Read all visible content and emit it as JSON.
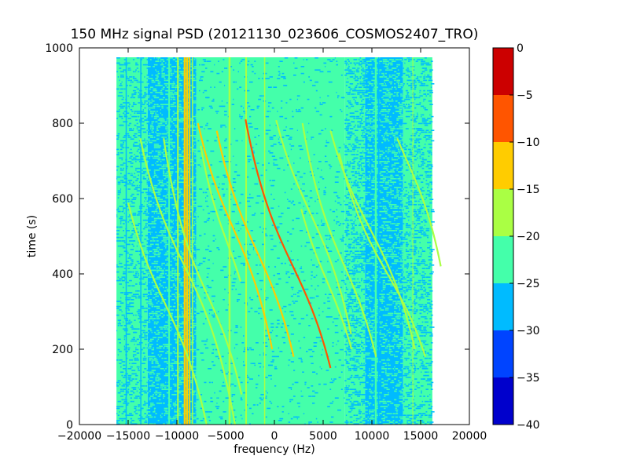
{
  "chart_data": {
    "type": "heatmap",
    "title": "150 MHz signal PSD (20121130_023606_COSMOS2407_TRO)",
    "xlabel": "frequency (Hz)",
    "ylabel": "time (s)",
    "xlim": [
      -20000,
      20000
    ],
    "ylim": [
      0,
      1000
    ],
    "x_ticks": [
      -20000,
      -15000,
      -10000,
      -5000,
      0,
      5000,
      10000,
      15000,
      20000
    ],
    "x_tick_labels": [
      "−20000",
      "−15000",
      "−10000",
      "−5000",
      "0",
      "5000",
      "10000",
      "15000",
      "20000"
    ],
    "y_ticks": [
      0,
      200,
      400,
      600,
      800,
      1000
    ],
    "y_tick_labels": [
      "0",
      "200",
      "400",
      "600",
      "800",
      "1000"
    ],
    "data_extent": {
      "x": [
        -16200,
        16200
      ],
      "y": [
        0,
        975
      ]
    },
    "colorbar": {
      "levels": [
        -40,
        -35,
        -30,
        -25,
        -20,
        -15,
        -10,
        -5,
        0
      ],
      "tick_labels": [
        "−40",
        "−35",
        "−30",
        "−25",
        "−20",
        "−15",
        "−10",
        "−5",
        "0"
      ],
      "colors": [
        "#0000cc",
        "#0044ff",
        "#00bbff",
        "#44ffaa",
        "#aaff44",
        "#ffcc00",
        "#ff5500",
        "#cc0000"
      ]
    },
    "background_level_color": "#44ffaa",
    "noise_bands": [
      {
        "x": [
          -16200,
          -13000
        ],
        "color": "#44ffaa",
        "density": 0.18,
        "speck_color": "#00bbff"
      },
      {
        "x": [
          -13000,
          -8000
        ],
        "color": "#00bbff",
        "density": 0.22,
        "speck_color": "#44ffaa"
      },
      {
        "x": [
          -8000,
          7200
        ],
        "color": "#44ffaa",
        "density": 0.04,
        "speck_color": "#00bbff"
      },
      {
        "x": [
          7200,
          9300
        ],
        "color": "#44ffaa",
        "density": 0.25,
        "speck_color": "#00bbff"
      },
      {
        "x": [
          9300,
          13200
        ],
        "color": "#00bbff",
        "density": 0.22,
        "speck_color": "#44ffaa"
      },
      {
        "x": [
          13200,
          16200
        ],
        "color": "#44ffaa",
        "density": 0.2,
        "speck_color": "#00bbff"
      }
    ],
    "vertical_lines": [
      {
        "x": -15200,
        "color": "#00bbff",
        "width": 1.5
      },
      {
        "x": -13700,
        "color": "#00bbff",
        "width": 1.5
      },
      {
        "x": -10800,
        "color": "#44ffaa",
        "width": 2
      },
      {
        "x": -9900,
        "color": "#aaff44",
        "width": 2
      },
      {
        "x": -9200,
        "color": "#ffcc00",
        "width": 2.5
      },
      {
        "x": -8950,
        "color": "#ffcc00",
        "width": 2.5
      },
      {
        "x": -8700,
        "color": "#ffcc00",
        "width": 2
      },
      {
        "x": -8400,
        "color": "#aaff44",
        "width": 1.5
      },
      {
        "x": -4600,
        "color": "#aaff44",
        "width": 2.5
      },
      {
        "x": -2900,
        "color": "#aaff44",
        "width": 2
      },
      {
        "x": -1000,
        "color": "#aaff44",
        "width": 1.5
      },
      {
        "x": 10400,
        "color": "#44ffaa",
        "width": 2.5
      },
      {
        "x": 10700,
        "color": "#00bbff",
        "width": 1.5
      },
      {
        "x": 14200,
        "color": "#aaff44",
        "width": 1
      }
    ],
    "doppler_curves": [
      {
        "f_center": 5400,
        "t_center": 380,
        "amplitude": 2600,
        "t_scale": 160,
        "t_range": [
          200,
          575
        ],
        "color": "#aaff44"
      },
      {
        "f_center": 3700,
        "t_center": 560,
        "amplitude": 3000,
        "t_scale": 170,
        "t_range": [
          240,
          810
        ],
        "color": "#aaff44"
      },
      {
        "f_center": 1900,
        "t_center": 420,
        "amplitude": 3100,
        "t_scale": 170,
        "t_range": [
          150,
          810
        ],
        "color": "#ff5500"
      },
      {
        "f_center": -1800,
        "t_center": 460,
        "amplitude": 2900,
        "t_scale": 165,
        "t_range": [
          180,
          780
        ],
        "color": "#ffcc00"
      },
      {
        "f_center": -4200,
        "t_center": 520,
        "amplitude": 2800,
        "t_scale": 165,
        "t_range": [
          200,
          800
        ],
        "color": "#ffcc00"
      },
      {
        "f_center": -9200,
        "t_center": 420,
        "amplitude": 3100,
        "t_scale": 165,
        "t_range": [
          0,
          760
        ],
        "color": "#aaff44"
      },
      {
        "f_center": -11200,
        "t_center": 320,
        "amplitude": 3000,
        "t_scale": 165,
        "t_range": [
          0,
          590
        ],
        "color": "#aaff44"
      },
      {
        "f_center": 7200,
        "t_center": 420,
        "amplitude": 2700,
        "t_scale": 160,
        "t_range": [
          180,
          800
        ],
        "color": "#aaff44"
      },
      {
        "f_center": 9800,
        "t_center": 520,
        "amplitude": 3200,
        "t_scale": 160,
        "t_range": [
          200,
          780
        ],
        "color": "#aaff44"
      },
      {
        "f_center": 11600,
        "t_center": 400,
        "amplitude": 3300,
        "t_scale": 150,
        "t_range": [
          180,
          720
        ],
        "color": "#aaff44"
      },
      {
        "f_center": 13600,
        "t_center": 700,
        "amplitude": 2400,
        "t_scale": 140,
        "t_range": [
          420,
          760
        ],
        "color": "#aaff44"
      },
      {
        "f_center": -6800,
        "t_center": 340,
        "amplitude": 2600,
        "t_scale": 150,
        "t_range": [
          80,
          760
        ],
        "color": "#aaff44"
      },
      {
        "f_center": -4800,
        "t_center": 480,
        "amplitude": 2000,
        "t_scale": 140,
        "t_range": [
          380,
          740
        ],
        "color": "#aaff44"
      }
    ]
  }
}
